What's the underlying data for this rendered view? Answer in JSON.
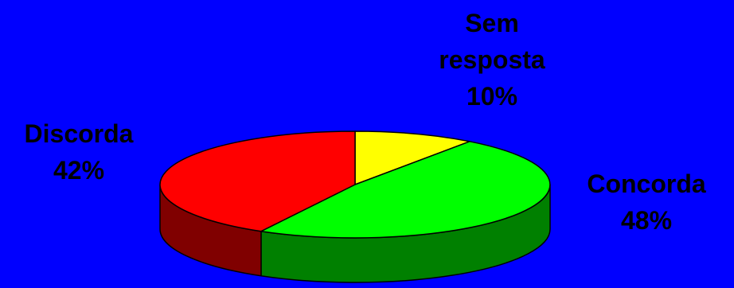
{
  "chart_data": {
    "type": "pie",
    "style": "3d",
    "title": "",
    "categories": [
      "Sem resposta",
      "Concorda",
      "Discorda"
    ],
    "values": [
      10,
      48,
      42
    ],
    "labels": [
      {
        "lines": [
          "Sem",
          "resposta"
        ],
        "value_text": "10%"
      },
      {
        "lines": [
          "Concorda"
        ],
        "value_text": "48%"
      },
      {
        "lines": [
          "Discorda"
        ],
        "value_text": "42%"
      }
    ],
    "colors": {
      "top": [
        "#ffff00",
        "#00ff00",
        "#ff0000"
      ],
      "side": [
        "#808000",
        "#008000",
        "#800000"
      ],
      "background": "#0000ff"
    },
    "legend": "none",
    "start_angle": "12 o'clock, clockwise"
  }
}
